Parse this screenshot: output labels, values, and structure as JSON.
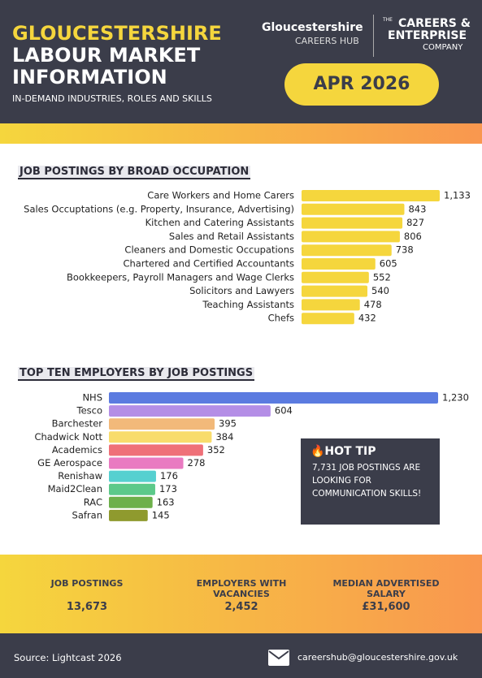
{
  "header": {
    "title_lines": [
      "GLOUCESTERSHIRE",
      "LABOUR MARKET",
      "INFORMATION"
    ],
    "subtitle": "IN-DEMAND INDUSTRIES, ROLES AND SKILLS",
    "hub_name": "Gloucestershire",
    "hub_sub": "CAREERS HUB",
    "company_the": "THE",
    "company_lines": [
      "CAREERS &",
      "ENTERPRISE"
    ],
    "company_sub": "COMPANY",
    "date": "APR 2026"
  },
  "chart_data": [
    {
      "type": "bar",
      "orientation": "horizontal",
      "title": "JOB POSTINGS BY BROAD OCCUPATION",
      "color": "#f5d63d",
      "categories": [
        "Care Workers and Home Carers",
        "Sales Occuptations (e.g. Property, Insurance, Advertising)",
        "Kitchen and Catering Assistants",
        "Sales and Retail Assistants",
        "Cleaners and Domestic Occupations",
        "Chartered and Certified Accountants",
        "Bookkeepers, Payroll Managers and Wage Clerks",
        "Solicitors and Lawyers",
        "Teaching Assistants",
        "Chefs"
      ],
      "values": [
        1133,
        843,
        827,
        806,
        738,
        605,
        552,
        540,
        478,
        432
      ],
      "value_labels": [
        "1,133",
        "843",
        "827",
        "806",
        "738",
        "605",
        "552",
        "540",
        "478",
        "432"
      ]
    },
    {
      "type": "bar",
      "orientation": "horizontal",
      "title": "TOP TEN EMPLOYERS BY JOB POSTINGS",
      "categories": [
        "NHS",
        "Tesco",
        "Barchester",
        "Chadwick Nott",
        "Academics",
        "GE Aerospace",
        "Renishaw",
        "Maid2Clean",
        "RAC",
        "Safran"
      ],
      "values": [
        1230,
        604,
        395,
        384,
        352,
        278,
        176,
        173,
        163,
        145
      ],
      "value_labels": [
        "1,230",
        "604",
        "395",
        "384",
        "352",
        "278",
        "176",
        "173",
        "163",
        "145"
      ],
      "colors": [
        "#5b7be0",
        "#b48ee6",
        "#f2b97a",
        "#f8dc6c",
        "#ef7078",
        "#e97ac1",
        "#56d0d0",
        "#5cc98a",
        "#6db04a",
        "#8f9a2e"
      ]
    }
  ],
  "hot_tip": {
    "title": "🔥HOT TIP",
    "text": "7,731 JOB POSTINGS ARE LOOKING FOR COMMUNICATION SKILLS!"
  },
  "stats": [
    {
      "label": "JOB POSTINGS",
      "value": "13,673"
    },
    {
      "label": "EMPLOYERS WITH VACANCIES",
      "value": "2,452"
    },
    {
      "label": "MEDIAN ADVERTISED SALARY",
      "value": "£31,600"
    }
  ],
  "footer": {
    "source": "Source: Lightcast 2026",
    "email": "careershub@gloucestershire.gov.uk"
  }
}
